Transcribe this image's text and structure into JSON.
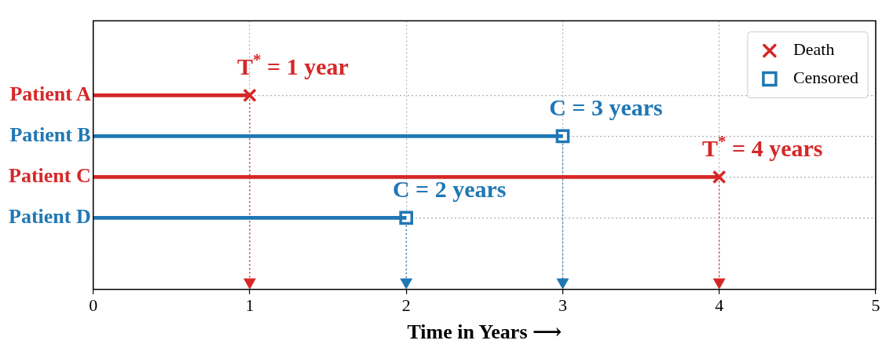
{
  "chart_data": {
    "type": "bar",
    "orientation": "horizontal",
    "categories": [
      "Patient A",
      "Patient B",
      "Patient C",
      "Patient D"
    ],
    "xlabel": "Time in Years ⟶",
    "xlim": [
      0,
      5
    ],
    "xticks": [
      0,
      1,
      2,
      3,
      4,
      5
    ],
    "grid": true,
    "legend": "top right",
    "series": [
      {
        "colors": [
          "#d62728",
          "#1f77b4",
          "#d62728",
          "#1f77b4"
        ],
        "values": [
          1,
          3,
          4,
          2
        ]
      },
      {
        "name": "Death",
        "type": "scatter",
        "marker": "cross",
        "color": "#d62728",
        "x": [
          "Patient A",
          "Patient C"
        ],
        "values": [
          1,
          4
        ]
      },
      {
        "name": "Censored",
        "type": "scatter",
        "marker": "square",
        "color": "#1f77b4",
        "x": [
          "Patient B",
          "Patient D"
        ],
        "values": [
          3,
          2
        ]
      }
    ],
    "ref_lines": [
      {
        "axis": "x",
        "value": 1,
        "color": "#d62728",
        "line_style": "dotted"
      },
      {
        "axis": "x",
        "value": 2,
        "color": "#1f77b4",
        "line_style": "dotted"
      },
      {
        "axis": "x",
        "value": 3,
        "color": "#1f77b4",
        "line_style": "dotted"
      },
      {
        "axis": "x",
        "value": 4,
        "color": "#d62728",
        "line_style": "dotted"
      }
    ],
    "annotations": [
      {
        "text": "T$^{*}$ = 1 year",
        "x": 1,
        "y": "Patient A"
      },
      {
        "text": "C = 3 years",
        "x": 3,
        "y": "Patient B"
      },
      {
        "text": "T$^{*}$ = 4 years",
        "x": 4,
        "y": "Patient C"
      },
      {
        "text": "C = 2 years",
        "x": 2,
        "y": "Patient D"
      }
    ]
  }
}
